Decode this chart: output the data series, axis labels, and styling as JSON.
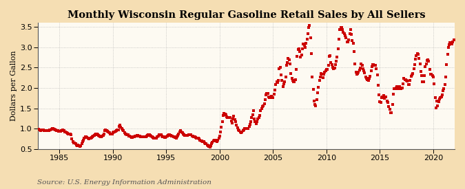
{
  "title": "Monthly Wisconsin Regular Gasoline Retail Sales by All Sellers",
  "ylabel": "Dollars per Gallon",
  "source": "Source: U.S. Energy Information Administration",
  "fig_bg_color": "#F5DEB3",
  "plot_bg_color": "#FDFAF2",
  "marker_color": "#CC0000",
  "marker": "s",
  "marker_size": 6,
  "xlim": [
    1983,
    2022
  ],
  "ylim": [
    0.5,
    3.6
  ],
  "yticks": [
    0.5,
    1.0,
    1.5,
    2.0,
    2.5,
    3.0,
    3.5
  ],
  "xticks": [
    1985,
    1990,
    1995,
    2000,
    2005,
    2010,
    2015,
    2020
  ],
  "grid_color": "#AAAAAA",
  "grid_style": ":",
  "grid_alpha": 0.8,
  "title_fontsize": 10.5,
  "label_fontsize": 8,
  "tick_fontsize": 8,
  "source_fontsize": 7.5,
  "data": [
    [
      1983.08,
      0.986
    ],
    [
      1983.17,
      0.966
    ],
    [
      1983.25,
      0.956
    ],
    [
      1983.33,
      0.966
    ],
    [
      1983.42,
      0.976
    ],
    [
      1983.5,
      0.966
    ],
    [
      1983.58,
      0.956
    ],
    [
      1983.67,
      0.956
    ],
    [
      1983.75,
      0.946
    ],
    [
      1983.83,
      0.946
    ],
    [
      1983.92,
      0.946
    ],
    [
      1984.0,
      0.956
    ],
    [
      1984.08,
      0.966
    ],
    [
      1984.17,
      0.976
    ],
    [
      1984.25,
      0.986
    ],
    [
      1984.33,
      0.996
    ],
    [
      1984.42,
      0.996
    ],
    [
      1984.5,
      0.986
    ],
    [
      1984.58,
      0.976
    ],
    [
      1984.67,
      0.966
    ],
    [
      1984.75,
      0.956
    ],
    [
      1984.83,
      0.946
    ],
    [
      1984.92,
      0.936
    ],
    [
      1985.0,
      0.936
    ],
    [
      1985.08,
      0.936
    ],
    [
      1985.17,
      0.946
    ],
    [
      1985.25,
      0.956
    ],
    [
      1985.33,
      0.966
    ],
    [
      1985.42,
      0.946
    ],
    [
      1985.5,
      0.926
    ],
    [
      1985.58,
      0.916
    ],
    [
      1985.67,
      0.896
    ],
    [
      1985.75,
      0.886
    ],
    [
      1985.83,
      0.876
    ],
    [
      1985.92,
      0.876
    ],
    [
      1986.0,
      0.876
    ],
    [
      1986.08,
      0.846
    ],
    [
      1986.17,
      0.756
    ],
    [
      1986.25,
      0.686
    ],
    [
      1986.33,
      0.656
    ],
    [
      1986.42,
      0.646
    ],
    [
      1986.5,
      0.626
    ],
    [
      1986.58,
      0.606
    ],
    [
      1986.67,
      0.586
    ],
    [
      1986.75,
      0.596
    ],
    [
      1986.83,
      0.576
    ],
    [
      1986.92,
      0.566
    ],
    [
      1987.0,
      0.586
    ],
    [
      1987.08,
      0.626
    ],
    [
      1987.17,
      0.676
    ],
    [
      1987.25,
      0.726
    ],
    [
      1987.33,
      0.776
    ],
    [
      1987.42,
      0.806
    ],
    [
      1987.5,
      0.806
    ],
    [
      1987.58,
      0.786
    ],
    [
      1987.67,
      0.766
    ],
    [
      1987.75,
      0.756
    ],
    [
      1987.83,
      0.766
    ],
    [
      1987.92,
      0.776
    ],
    [
      1988.0,
      0.786
    ],
    [
      1988.08,
      0.806
    ],
    [
      1988.17,
      0.826
    ],
    [
      1988.25,
      0.836
    ],
    [
      1988.33,
      0.856
    ],
    [
      1988.42,
      0.876
    ],
    [
      1988.5,
      0.876
    ],
    [
      1988.58,
      0.856
    ],
    [
      1988.67,
      0.836
    ],
    [
      1988.75,
      0.816
    ],
    [
      1988.83,
      0.806
    ],
    [
      1988.92,
      0.796
    ],
    [
      1989.0,
      0.816
    ],
    [
      1989.08,
      0.836
    ],
    [
      1989.17,
      0.876
    ],
    [
      1989.25,
      0.946
    ],
    [
      1989.33,
      0.966
    ],
    [
      1989.42,
      0.946
    ],
    [
      1989.5,
      0.936
    ],
    [
      1989.58,
      0.926
    ],
    [
      1989.67,
      0.896
    ],
    [
      1989.75,
      0.876
    ],
    [
      1989.83,
      0.866
    ],
    [
      1989.92,
      0.876
    ],
    [
      1990.0,
      0.896
    ],
    [
      1990.08,
      0.916
    ],
    [
      1990.17,
      0.926
    ],
    [
      1990.25,
      0.936
    ],
    [
      1990.33,
      0.956
    ],
    [
      1990.42,
      0.966
    ],
    [
      1990.5,
      0.976
    ],
    [
      1990.58,
      1.056
    ],
    [
      1990.67,
      1.096
    ],
    [
      1990.75,
      1.036
    ],
    [
      1990.83,
      1.006
    ],
    [
      1990.92,
      0.976
    ],
    [
      1991.0,
      0.946
    ],
    [
      1991.08,
      0.906
    ],
    [
      1991.17,
      0.876
    ],
    [
      1991.25,
      0.866
    ],
    [
      1991.33,
      0.856
    ],
    [
      1991.42,
      0.846
    ],
    [
      1991.5,
      0.826
    ],
    [
      1991.58,
      0.816
    ],
    [
      1991.67,
      0.796
    ],
    [
      1991.75,
      0.786
    ],
    [
      1991.83,
      0.786
    ],
    [
      1991.92,
      0.796
    ],
    [
      1992.0,
      0.806
    ],
    [
      1992.08,
      0.816
    ],
    [
      1992.17,
      0.826
    ],
    [
      1992.25,
      0.836
    ],
    [
      1992.33,
      0.836
    ],
    [
      1992.42,
      0.826
    ],
    [
      1992.5,
      0.816
    ],
    [
      1992.58,
      0.806
    ],
    [
      1992.67,
      0.806
    ],
    [
      1992.75,
      0.796
    ],
    [
      1992.83,
      0.796
    ],
    [
      1992.92,
      0.796
    ],
    [
      1993.0,
      0.796
    ],
    [
      1993.08,
      0.806
    ],
    [
      1993.17,
      0.826
    ],
    [
      1993.25,
      0.836
    ],
    [
      1993.33,
      0.846
    ],
    [
      1993.42,
      0.846
    ],
    [
      1993.5,
      0.836
    ],
    [
      1993.58,
      0.816
    ],
    [
      1993.67,
      0.796
    ],
    [
      1993.75,
      0.786
    ],
    [
      1993.83,
      0.776
    ],
    [
      1993.92,
      0.766
    ],
    [
      1994.0,
      0.766
    ],
    [
      1994.08,
      0.776
    ],
    [
      1994.17,
      0.796
    ],
    [
      1994.25,
      0.826
    ],
    [
      1994.33,
      0.846
    ],
    [
      1994.42,
      0.856
    ],
    [
      1994.5,
      0.846
    ],
    [
      1994.58,
      0.826
    ],
    [
      1994.67,
      0.806
    ],
    [
      1994.75,
      0.796
    ],
    [
      1994.83,
      0.786
    ],
    [
      1994.92,
      0.786
    ],
    [
      1995.0,
      0.796
    ],
    [
      1995.08,
      0.816
    ],
    [
      1995.17,
      0.836
    ],
    [
      1995.25,
      0.856
    ],
    [
      1995.33,
      0.846
    ],
    [
      1995.42,
      0.836
    ],
    [
      1995.5,
      0.826
    ],
    [
      1995.58,
      0.816
    ],
    [
      1995.67,
      0.806
    ],
    [
      1995.75,
      0.796
    ],
    [
      1995.83,
      0.786
    ],
    [
      1995.92,
      0.776
    ],
    [
      1996.0,
      0.796
    ],
    [
      1996.08,
      0.836
    ],
    [
      1996.17,
      0.876
    ],
    [
      1996.25,
      0.926
    ],
    [
      1996.33,
      0.946
    ],
    [
      1996.42,
      0.926
    ],
    [
      1996.5,
      0.906
    ],
    [
      1996.58,
      0.876
    ],
    [
      1996.67,
      0.856
    ],
    [
      1996.75,
      0.836
    ],
    [
      1996.83,
      0.836
    ],
    [
      1996.92,
      0.836
    ],
    [
      1997.0,
      0.836
    ],
    [
      1997.08,
      0.846
    ],
    [
      1997.17,
      0.846
    ],
    [
      1997.25,
      0.856
    ],
    [
      1997.33,
      0.846
    ],
    [
      1997.42,
      0.826
    ],
    [
      1997.5,
      0.816
    ],
    [
      1997.58,
      0.796
    ],
    [
      1997.67,
      0.796
    ],
    [
      1997.75,
      0.786
    ],
    [
      1997.83,
      0.776
    ],
    [
      1997.92,
      0.766
    ],
    [
      1998.0,
      0.766
    ],
    [
      1998.08,
      0.746
    ],
    [
      1998.17,
      0.716
    ],
    [
      1998.25,
      0.706
    ],
    [
      1998.33,
      0.696
    ],
    [
      1998.42,
      0.686
    ],
    [
      1998.5,
      0.676
    ],
    [
      1998.58,
      0.646
    ],
    [
      1998.67,
      0.636
    ],
    [
      1998.75,
      0.626
    ],
    [
      1998.83,
      0.606
    ],
    [
      1998.92,
      0.586
    ],
    [
      1999.0,
      0.566
    ],
    [
      1999.08,
      0.556
    ],
    [
      1999.17,
      0.576
    ],
    [
      1999.25,
      0.626
    ],
    [
      1999.33,
      0.666
    ],
    [
      1999.42,
      0.696
    ],
    [
      1999.5,
      0.716
    ],
    [
      1999.58,
      0.716
    ],
    [
      1999.67,
      0.696
    ],
    [
      1999.75,
      0.686
    ],
    [
      1999.83,
      0.716
    ],
    [
      1999.92,
      0.766
    ],
    [
      2000.0,
      0.826
    ],
    [
      2000.08,
      0.916
    ],
    [
      2000.17,
      1.046
    ],
    [
      2000.25,
      1.176
    ],
    [
      2000.33,
      1.316
    ],
    [
      2000.42,
      1.376
    ],
    [
      2000.5,
      1.356
    ],
    [
      2000.58,
      1.336
    ],
    [
      2000.67,
      1.296
    ],
    [
      2000.75,
      1.276
    ],
    [
      2000.83,
      1.276
    ],
    [
      2000.92,
      1.276
    ],
    [
      2001.0,
      1.266
    ],
    [
      2001.08,
      1.186
    ],
    [
      2001.17,
      1.136
    ],
    [
      2001.25,
      1.246
    ],
    [
      2001.33,
      1.306
    ],
    [
      2001.42,
      1.226
    ],
    [
      2001.5,
      1.166
    ],
    [
      2001.58,
      1.096
    ],
    [
      2001.67,
      1.026
    ],
    [
      2001.75,
      0.966
    ],
    [
      2001.83,
      0.946
    ],
    [
      2001.92,
      0.916
    ],
    [
      2002.0,
      0.906
    ],
    [
      2002.08,
      0.926
    ],
    [
      2002.17,
      0.956
    ],
    [
      2002.25,
      0.976
    ],
    [
      2002.33,
      0.996
    ],
    [
      2002.42,
      1.006
    ],
    [
      2002.5,
      0.996
    ],
    [
      2002.58,
      1.006
    ],
    [
      2002.67,
      0.996
    ],
    [
      2002.75,
      1.056
    ],
    [
      2002.83,
      1.106
    ],
    [
      2002.92,
      1.166
    ],
    [
      2003.0,
      1.266
    ],
    [
      2003.08,
      1.346
    ],
    [
      2003.17,
      1.446
    ],
    [
      2003.25,
      1.246
    ],
    [
      2003.33,
      1.176
    ],
    [
      2003.42,
      1.126
    ],
    [
      2003.5,
      1.176
    ],
    [
      2003.58,
      1.236
    ],
    [
      2003.67,
      1.266
    ],
    [
      2003.75,
      1.326
    ],
    [
      2003.83,
      1.446
    ],
    [
      2003.92,
      1.496
    ],
    [
      2004.0,
      1.546
    ],
    [
      2004.08,
      1.566
    ],
    [
      2004.17,
      1.616
    ],
    [
      2004.25,
      1.716
    ],
    [
      2004.33,
      1.836
    ],
    [
      2004.42,
      1.866
    ],
    [
      2004.5,
      1.856
    ],
    [
      2004.58,
      1.786
    ],
    [
      2004.67,
      1.766
    ],
    [
      2004.75,
      1.786
    ],
    [
      2004.83,
      1.796
    ],
    [
      2004.92,
      1.766
    ],
    [
      2005.0,
      1.766
    ],
    [
      2005.08,
      1.846
    ],
    [
      2005.17,
      1.946
    ],
    [
      2005.25,
      2.086
    ],
    [
      2005.33,
      2.156
    ],
    [
      2005.42,
      2.126
    ],
    [
      2005.5,
      2.186
    ],
    [
      2005.58,
      2.476
    ],
    [
      2005.67,
      2.496
    ],
    [
      2005.75,
      2.316
    ],
    [
      2005.83,
      2.186
    ],
    [
      2005.92,
      2.026
    ],
    [
      2006.0,
      2.096
    ],
    [
      2006.08,
      2.146
    ],
    [
      2006.17,
      2.276
    ],
    [
      2006.25,
      2.546
    ],
    [
      2006.33,
      2.616
    ],
    [
      2006.42,
      2.716
    ],
    [
      2006.5,
      2.696
    ],
    [
      2006.58,
      2.586
    ],
    [
      2006.67,
      2.356
    ],
    [
      2006.75,
      2.226
    ],
    [
      2006.83,
      2.176
    ],
    [
      2006.92,
      2.146
    ],
    [
      2007.0,
      2.156
    ],
    [
      2007.08,
      2.196
    ],
    [
      2007.17,
      2.446
    ],
    [
      2007.25,
      2.766
    ],
    [
      2007.33,
      2.936
    ],
    [
      2007.42,
      2.956
    ],
    [
      2007.5,
      2.896
    ],
    [
      2007.58,
      2.756
    ],
    [
      2007.67,
      2.806
    ],
    [
      2007.75,
      2.956
    ],
    [
      2007.83,
      3.076
    ],
    [
      2007.92,
      3.046
    ],
    [
      2008.0,
      2.986
    ],
    [
      2008.08,
      3.086
    ],
    [
      2008.17,
      3.196
    ],
    [
      2008.25,
      3.336
    ],
    [
      2008.33,
      3.486
    ],
    [
      2008.42,
      3.536
    ],
    [
      2008.5,
      3.236
    ],
    [
      2008.58,
      2.836
    ],
    [
      2008.67,
      2.266
    ],
    [
      2008.75,
      1.966
    ],
    [
      2008.83,
      1.676
    ],
    [
      2008.92,
      1.596
    ],
    [
      2009.0,
      1.556
    ],
    [
      2009.08,
      1.716
    ],
    [
      2009.17,
      1.876
    ],
    [
      2009.25,
      2.016
    ],
    [
      2009.33,
      2.176
    ],
    [
      2009.42,
      2.276
    ],
    [
      2009.5,
      2.356
    ],
    [
      2009.58,
      2.336
    ],
    [
      2009.67,
      2.256
    ],
    [
      2009.75,
      2.336
    ],
    [
      2009.83,
      2.386
    ],
    [
      2009.92,
      2.416
    ],
    [
      2010.0,
      2.456
    ],
    [
      2010.08,
      2.446
    ],
    [
      2010.17,
      2.556
    ],
    [
      2010.25,
      2.776
    ],
    [
      2010.33,
      2.786
    ],
    [
      2010.42,
      2.626
    ],
    [
      2010.5,
      2.566
    ],
    [
      2010.58,
      2.496
    ],
    [
      2010.67,
      2.466
    ],
    [
      2010.75,
      2.486
    ],
    [
      2010.83,
      2.576
    ],
    [
      2010.92,
      2.656
    ],
    [
      2011.0,
      2.756
    ],
    [
      2011.08,
      2.956
    ],
    [
      2011.17,
      3.196
    ],
    [
      2011.25,
      3.436
    ],
    [
      2011.33,
      3.476
    ],
    [
      2011.42,
      3.476
    ],
    [
      2011.5,
      3.436
    ],
    [
      2011.58,
      3.356
    ],
    [
      2011.67,
      3.336
    ],
    [
      2011.75,
      3.276
    ],
    [
      2011.83,
      3.226
    ],
    [
      2011.92,
      3.126
    ],
    [
      2012.0,
      3.126
    ],
    [
      2012.08,
      3.186
    ],
    [
      2012.17,
      3.336
    ],
    [
      2012.25,
      3.426
    ],
    [
      2012.33,
      3.306
    ],
    [
      2012.42,
      3.166
    ],
    [
      2012.5,
      3.086
    ],
    [
      2012.58,
      2.896
    ],
    [
      2012.67,
      2.586
    ],
    [
      2012.75,
      2.386
    ],
    [
      2012.83,
      2.336
    ],
    [
      2012.92,
      2.346
    ],
    [
      2013.0,
      2.386
    ],
    [
      2013.08,
      2.436
    ],
    [
      2013.17,
      2.486
    ],
    [
      2013.25,
      2.586
    ],
    [
      2013.33,
      2.546
    ],
    [
      2013.42,
      2.476
    ],
    [
      2013.5,
      2.416
    ],
    [
      2013.58,
      2.376
    ],
    [
      2013.67,
      2.276
    ],
    [
      2013.75,
      2.236
    ],
    [
      2013.83,
      2.196
    ],
    [
      2013.92,
      2.176
    ],
    [
      2014.0,
      2.226
    ],
    [
      2014.08,
      2.286
    ],
    [
      2014.17,
      2.416
    ],
    [
      2014.25,
      2.526
    ],
    [
      2014.33,
      2.576
    ],
    [
      2014.42,
      2.566
    ],
    [
      2014.5,
      2.546
    ],
    [
      2014.58,
      2.546
    ],
    [
      2014.67,
      2.476
    ],
    [
      2014.75,
      2.316
    ],
    [
      2014.83,
      2.066
    ],
    [
      2014.92,
      1.836
    ],
    [
      2015.0,
      1.656
    ],
    [
      2015.08,
      1.636
    ],
    [
      2015.17,
      1.766
    ],
    [
      2015.25,
      1.776
    ],
    [
      2015.33,
      1.816
    ],
    [
      2015.42,
      1.746
    ],
    [
      2015.5,
      1.776
    ],
    [
      2015.58,
      1.786
    ],
    [
      2015.67,
      1.676
    ],
    [
      2015.75,
      1.636
    ],
    [
      2015.83,
      1.536
    ],
    [
      2015.92,
      1.476
    ],
    [
      2016.0,
      1.386
    ],
    [
      2016.08,
      1.386
    ],
    [
      2016.17,
      1.596
    ],
    [
      2016.25,
      1.846
    ],
    [
      2016.33,
      1.986
    ],
    [
      2016.42,
      1.986
    ],
    [
      2016.5,
      2.006
    ],
    [
      2016.58,
      2.026
    ],
    [
      2016.67,
      1.976
    ],
    [
      2016.75,
      1.986
    ],
    [
      2016.83,
      2.026
    ],
    [
      2016.92,
      1.976
    ],
    [
      2017.0,
      1.976
    ],
    [
      2017.08,
      2.006
    ],
    [
      2017.17,
      2.106
    ],
    [
      2017.25,
      2.226
    ],
    [
      2017.33,
      2.206
    ],
    [
      2017.42,
      2.206
    ],
    [
      2017.5,
      2.186
    ],
    [
      2017.58,
      2.166
    ],
    [
      2017.67,
      2.076
    ],
    [
      2017.75,
      2.076
    ],
    [
      2017.83,
      2.176
    ],
    [
      2017.92,
      2.286
    ],
    [
      2018.0,
      2.316
    ],
    [
      2018.08,
      2.346
    ],
    [
      2018.17,
      2.476
    ],
    [
      2018.25,
      2.576
    ],
    [
      2018.33,
      2.706
    ],
    [
      2018.42,
      2.796
    ],
    [
      2018.5,
      2.846
    ],
    [
      2018.58,
      2.816
    ],
    [
      2018.67,
      2.716
    ],
    [
      2018.75,
      2.586
    ],
    [
      2018.83,
      2.406
    ],
    [
      2018.92,
      2.296
    ],
    [
      2019.0,
      2.146
    ],
    [
      2019.08,
      2.146
    ],
    [
      2019.17,
      2.296
    ],
    [
      2019.25,
      2.516
    ],
    [
      2019.33,
      2.596
    ],
    [
      2019.42,
      2.676
    ],
    [
      2019.5,
      2.696
    ],
    [
      2019.58,
      2.656
    ],
    [
      2019.67,
      2.456
    ],
    [
      2019.75,
      2.336
    ],
    [
      2019.83,
      2.336
    ],
    [
      2019.92,
      2.296
    ],
    [
      2020.0,
      2.276
    ],
    [
      2020.08,
      2.106
    ],
    [
      2020.17,
      1.756
    ],
    [
      2020.25,
      1.516
    ],
    [
      2020.33,
      1.676
    ],
    [
      2020.42,
      1.556
    ],
    [
      2020.5,
      1.656
    ],
    [
      2020.58,
      1.736
    ],
    [
      2020.67,
      1.756
    ],
    [
      2020.75,
      1.776
    ],
    [
      2020.83,
      1.836
    ],
    [
      2020.92,
      1.936
    ],
    [
      2021.0,
      1.976
    ],
    [
      2021.08,
      2.086
    ],
    [
      2021.17,
      2.276
    ],
    [
      2021.25,
      2.576
    ],
    [
      2021.33,
      2.826
    ],
    [
      2021.42,
      2.996
    ],
    [
      2021.5,
      3.056
    ],
    [
      2021.58,
      3.116
    ],
    [
      2021.67,
      3.076
    ],
    [
      2021.75,
      3.076
    ],
    [
      2021.83,
      3.126
    ],
    [
      2021.92,
      3.186
    ]
  ]
}
